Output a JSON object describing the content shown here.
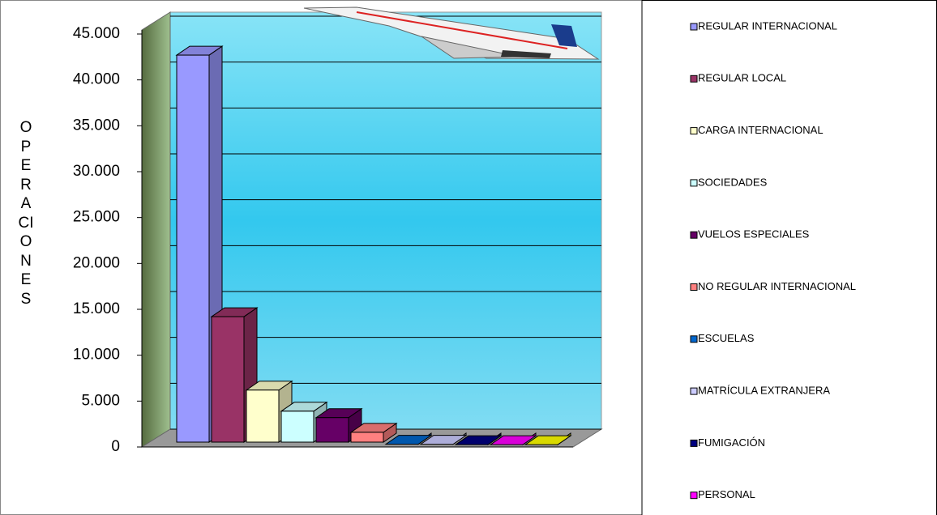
{
  "chart_data": {
    "type": "bar3d",
    "y_axis_label": "OPERACIONES",
    "categories": [
      "REGULAR INTERNACIONAL",
      "REGULAR LOCAL",
      "CARGA INTERNACIONAL",
      "SOCIEDADES",
      "VUELOS ESPECIALES",
      "NO REGULAR INTERNACIONAL",
      "ESCUELAS",
      "MATRÍCULA EXTRANJERA",
      "FUMIGACIÓN",
      "PERSONAL",
      null
    ],
    "values": [
      42700,
      14200,
      6200,
      3900,
      3200,
      1600,
      300,
      300,
      250,
      250,
      250
    ],
    "colors": [
      "#9999ff",
      "#993366",
      "#ffffcc",
      "#ccffff",
      "#660066",
      "#ff8080",
      "#0066cc",
      "#ccccff",
      "#000080",
      "#ff00ff",
      "#ffff00"
    ],
    "ylim": [
      0,
      45000
    ],
    "yticks": [
      0,
      {
        "value": 5000,
        "label": "5.000"
      },
      {
        "value": 10000,
        "label": "10.000"
      },
      {
        "value": 15000,
        "label": "15.000"
      },
      {
        "value": 20000,
        "label": "20.000"
      },
      {
        "value": 25000,
        "label": "25.000"
      },
      {
        "value": 30000,
        "label": "30.000"
      },
      {
        "value": 35000,
        "label": "35.000"
      },
      {
        "value": 40000,
        "label": "40.000"
      },
      {
        "value": 45000,
        "label": "45.000"
      }
    ],
    "grid": true
  }
}
